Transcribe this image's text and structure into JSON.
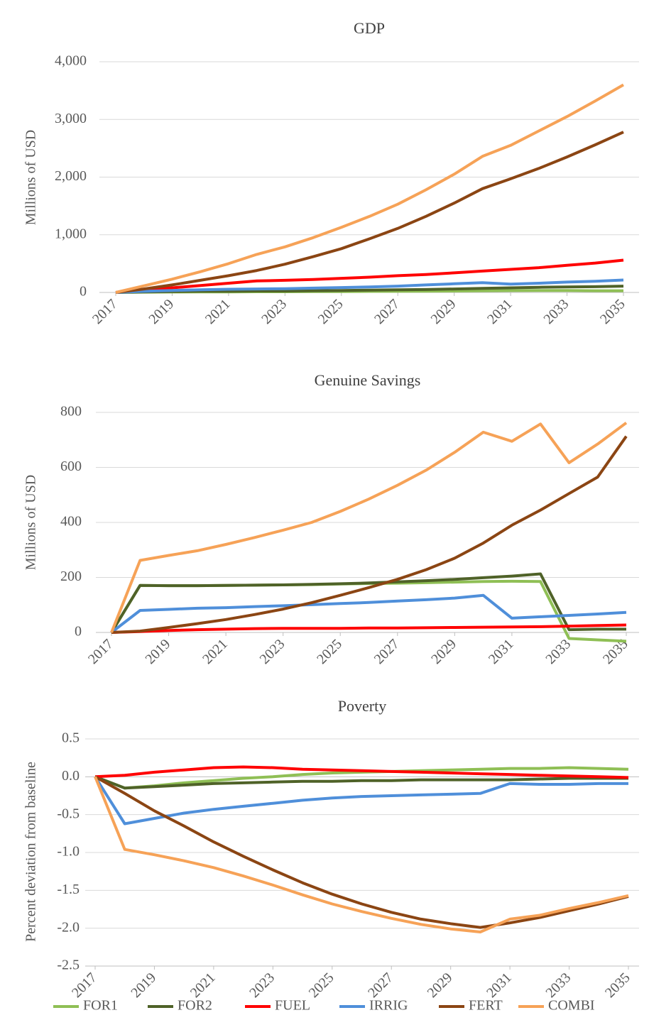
{
  "chart_data": [
    {
      "type": "line",
      "title": "GDP",
      "y_label": "Millions of USD",
      "x": [
        2017,
        2018,
        2019,
        2020,
        2021,
        2022,
        2023,
        2024,
        2025,
        2026,
        2027,
        2028,
        2029,
        2030,
        2031,
        2032,
        2033,
        2034,
        2035
      ],
      "xlim": [
        2017,
        2035
      ],
      "xticks": [
        2017,
        2019,
        2021,
        2023,
        2025,
        2027,
        2029,
        2031,
        2033,
        2035
      ],
      "ylim": [
        0,
        4000
      ],
      "yticks": [
        0,
        {
          "value": 1000,
          "label": "1,000"
        },
        {
          "value": 2000,
          "label": "2,000"
        },
        {
          "value": 3000,
          "label": "3,000"
        },
        {
          "value": 4000,
          "label": "4,000"
        }
      ],
      "grid": true,
      "series": [
        {
          "name": "FOR1",
          "color": "#8fbf55",
          "values": [
            0,
            5,
            8,
            10,
            10,
            12,
            12,
            15,
            15,
            18,
            20,
            22,
            25,
            30,
            32,
            35,
            35,
            30,
            30
          ]
        },
        {
          "name": "FOR2",
          "color": "#4f6228",
          "values": [
            0,
            10,
            15,
            20,
            20,
            25,
            25,
            30,
            35,
            40,
            45,
            50,
            60,
            70,
            80,
            90,
            95,
            100,
            110
          ]
        },
        {
          "name": "FUEL",
          "color": "#ff0000",
          "values": [
            0,
            40,
            80,
            120,
            160,
            200,
            210,
            225,
            245,
            265,
            290,
            310,
            340,
            370,
            400,
            430,
            470,
            510,
            560
          ]
        },
        {
          "name": "IRRIG",
          "color": "#4f8fda",
          "values": [
            0,
            20,
            35,
            45,
            55,
            60,
            65,
            75,
            85,
            95,
            110,
            130,
            150,
            170,
            145,
            160,
            180,
            195,
            215
          ]
        },
        {
          "name": "FERT",
          "color": "#8b4513",
          "values": [
            0,
            60,
            130,
            210,
            290,
            380,
            490,
            620,
            760,
            930,
            1110,
            1320,
            1550,
            1800,
            1970,
            2150,
            2350,
            2560,
            2780
          ]
        },
        {
          "name": "COMBI",
          "color": "#f6a257",
          "values": [
            0,
            115,
            230,
            360,
            500,
            660,
            790,
            950,
            1130,
            1320,
            1530,
            1780,
            2050,
            2360,
            2550,
            2800,
            3050,
            3320,
            3600
          ]
        }
      ]
    },
    {
      "type": "line",
      "title": "Genuine Savings",
      "y_label": "Millions of USD",
      "x": [
        2017,
        2018,
        2019,
        2020,
        2021,
        2022,
        2023,
        2024,
        2025,
        2026,
        2027,
        2028,
        2029,
        2030,
        2031,
        2032,
        2033,
        2034,
        2035
      ],
      "xlim": [
        2017,
        2035
      ],
      "xticks": [
        2017,
        2019,
        2021,
        2023,
        2025,
        2027,
        2029,
        2031,
        2033,
        2035
      ],
      "ylim": [
        0,
        800
      ],
      "yticks": [
        0,
        200,
        400,
        600,
        800
      ],
      "grid": true,
      "series": [
        {
          "name": "FOR1",
          "color": "#8fbf55",
          "values": [
            0,
            171,
            170,
            170,
            171,
            172,
            173,
            174,
            176,
            178,
            179,
            181,
            183,
            185,
            186,
            185,
            -22,
            -27,
            -32
          ]
        },
        {
          "name": "FOR2",
          "color": "#4f6228",
          "values": [
            0,
            171,
            170,
            170,
            171,
            172,
            173,
            175,
            177,
            180,
            184,
            188,
            193,
            199,
            205,
            213,
            10,
            12,
            12
          ]
        },
        {
          "name": "FUEL",
          "color": "#ff0000",
          "values": [
            0,
            3,
            7,
            10,
            12,
            14,
            15,
            15,
            15,
            16,
            16,
            17,
            18,
            19,
            20,
            21,
            23,
            25,
            27
          ]
        },
        {
          "name": "IRRIG",
          "color": "#4f8fda",
          "values": [
            0,
            80,
            84,
            88,
            90,
            94,
            97,
            101,
            105,
            109,
            114,
            119,
            125,
            135,
            52,
            57,
            62,
            67,
            73
          ]
        },
        {
          "name": "FERT",
          "color": "#8b4513",
          "values": [
            0,
            5,
            18,
            32,
            47,
            65,
            85,
            108,
            135,
            163,
            193,
            228,
            270,
            325,
            390,
            445,
            505,
            565,
            713
          ]
        },
        {
          "name": "COMBI",
          "color": "#f6a257",
          "values": [
            0,
            262,
            280,
            297,
            320,
            345,
            372,
            400,
            440,
            485,
            535,
            590,
            655,
            728,
            695,
            758,
            617,
            685,
            762
          ]
        }
      ]
    },
    {
      "type": "line",
      "title": "Poverty",
      "y_label": "Percent deviation from baseline",
      "x": [
        2017,
        2018,
        2019,
        2020,
        2021,
        2022,
        2023,
        2024,
        2025,
        2026,
        2027,
        2028,
        2029,
        2030,
        2031,
        2032,
        2033,
        2034,
        2035
      ],
      "xlim": [
        2017,
        2035
      ],
      "xticks": [
        2017,
        2019,
        2021,
        2023,
        2025,
        2027,
        2029,
        2031,
        2033,
        2035
      ],
      "ylim": [
        -2.5,
        0.5
      ],
      "yticks": [
        0.5,
        {
          "value": 0,
          "label": "0.0"
        },
        -0.5,
        {
          "value": -1,
          "label": "-1.0"
        },
        -1.5,
        {
          "value": -2,
          "label": "-2.0"
        },
        -2.5
      ],
      "grid": true,
      "series": [
        {
          "name": "FOR1",
          "color": "#8fbf55",
          "values": [
            0,
            -0.15,
            -0.12,
            -0.08,
            -0.05,
            -0.02,
            0.0,
            0.03,
            0.05,
            0.06,
            0.07,
            0.08,
            0.09,
            0.1,
            0.11,
            0.11,
            0.12,
            0.11,
            0.1
          ]
        },
        {
          "name": "FOR2",
          "color": "#4f6228",
          "values": [
            0,
            -0.15,
            -0.13,
            -0.11,
            -0.09,
            -0.08,
            -0.07,
            -0.06,
            -0.06,
            -0.05,
            -0.05,
            -0.04,
            -0.04,
            -0.04,
            -0.04,
            -0.03,
            -0.02,
            -0.02,
            -0.02
          ]
        },
        {
          "name": "FUEL",
          "color": "#ff0000",
          "values": [
            0,
            0.02,
            0.06,
            0.09,
            0.12,
            0.13,
            0.12,
            0.1,
            0.09,
            0.08,
            0.07,
            0.06,
            0.05,
            0.04,
            0.03,
            0.02,
            0.01,
            0.0,
            -0.01
          ]
        },
        {
          "name": "IRRIG",
          "color": "#4f8fda",
          "values": [
            0,
            -0.62,
            -0.55,
            -0.48,
            -0.43,
            -0.39,
            -0.35,
            -0.31,
            -0.28,
            -0.26,
            -0.25,
            -0.24,
            -0.23,
            -0.22,
            -0.09,
            -0.1,
            -0.1,
            -0.09,
            -0.09
          ]
        },
        {
          "name": "FERT",
          "color": "#8b4513",
          "values": [
            0,
            -0.22,
            -0.45,
            -0.65,
            -0.86,
            -1.05,
            -1.23,
            -1.4,
            -1.55,
            -1.68,
            -1.79,
            -1.88,
            -1.94,
            -1.99,
            -1.93,
            -1.86,
            -1.77,
            -1.68,
            -1.58
          ]
        },
        {
          "name": "COMBI",
          "color": "#f6a257",
          "values": [
            0,
            -0.96,
            -1.03,
            -1.11,
            -1.2,
            -1.31,
            -1.43,
            -1.56,
            -1.68,
            -1.78,
            -1.87,
            -1.95,
            -2.01,
            -2.05,
            -1.88,
            -1.83,
            -1.74,
            -1.66,
            -1.57
          ]
        }
      ]
    }
  ]
}
